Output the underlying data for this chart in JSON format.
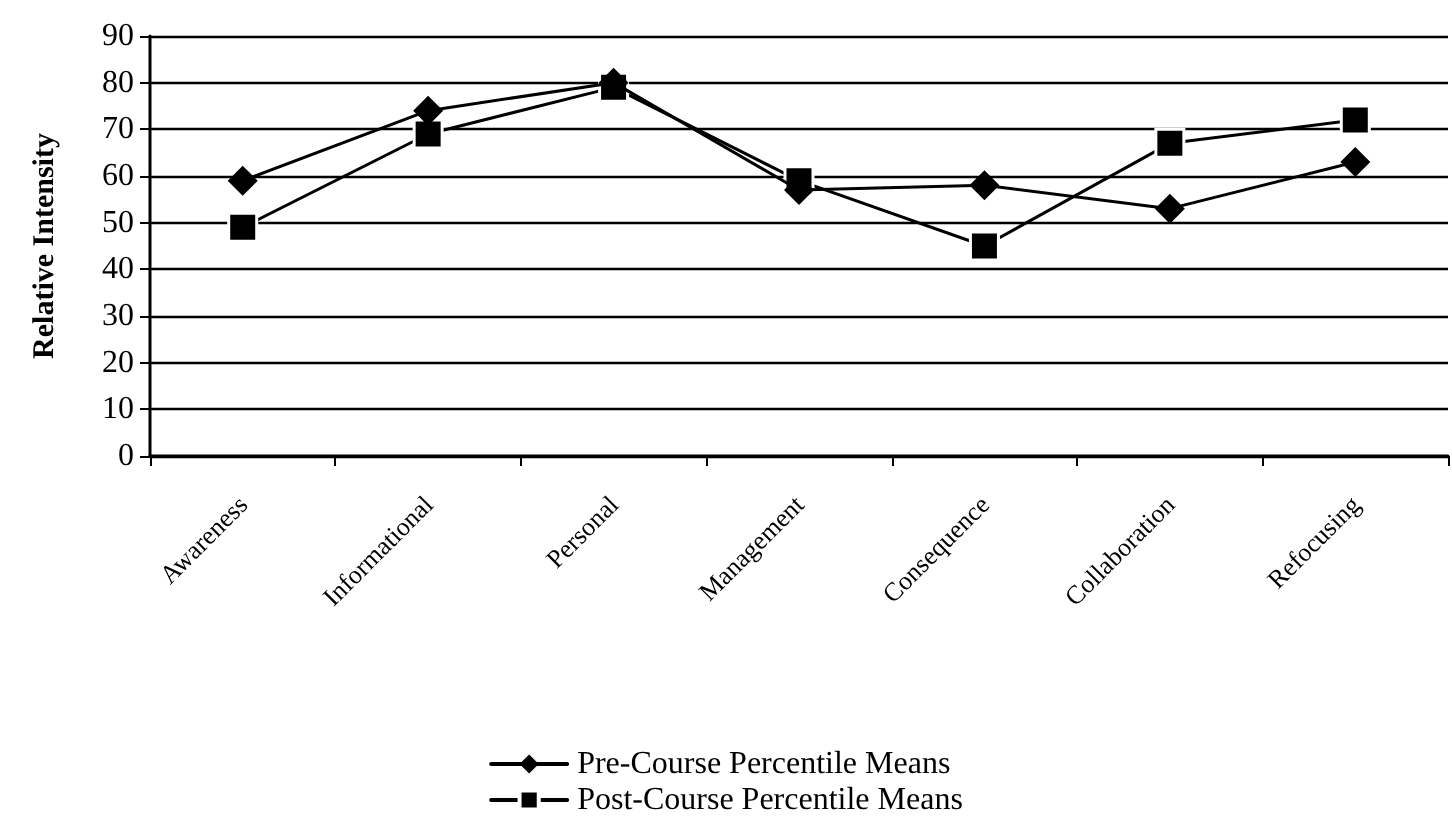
{
  "chart_data": {
    "type": "line",
    "ylabel": "Relative Intensity",
    "categories": [
      "Awareness",
      "Informational",
      "Personal",
      "Management",
      "Consequence",
      "Collaboration",
      "Refocusing"
    ],
    "series": [
      {
        "name": "Pre-Course Percentile Means",
        "color": "#000000",
        "marker": "diamond",
        "values": [
          59,
          74,
          80,
          57,
          58,
          53,
          63
        ]
      },
      {
        "name": "Post-Course Percentile Means",
        "color": "#000000",
        "marker": "square",
        "values": [
          49,
          69,
          79,
          59,
          45,
          67,
          72
        ]
      }
    ],
    "ylim": [
      0,
      90
    ],
    "yticks": [
      0,
      10,
      20,
      30,
      40,
      50,
      60,
      70,
      80,
      90
    ],
    "grid": "y",
    "legend": "bottom",
    "line_style": "solid"
  }
}
